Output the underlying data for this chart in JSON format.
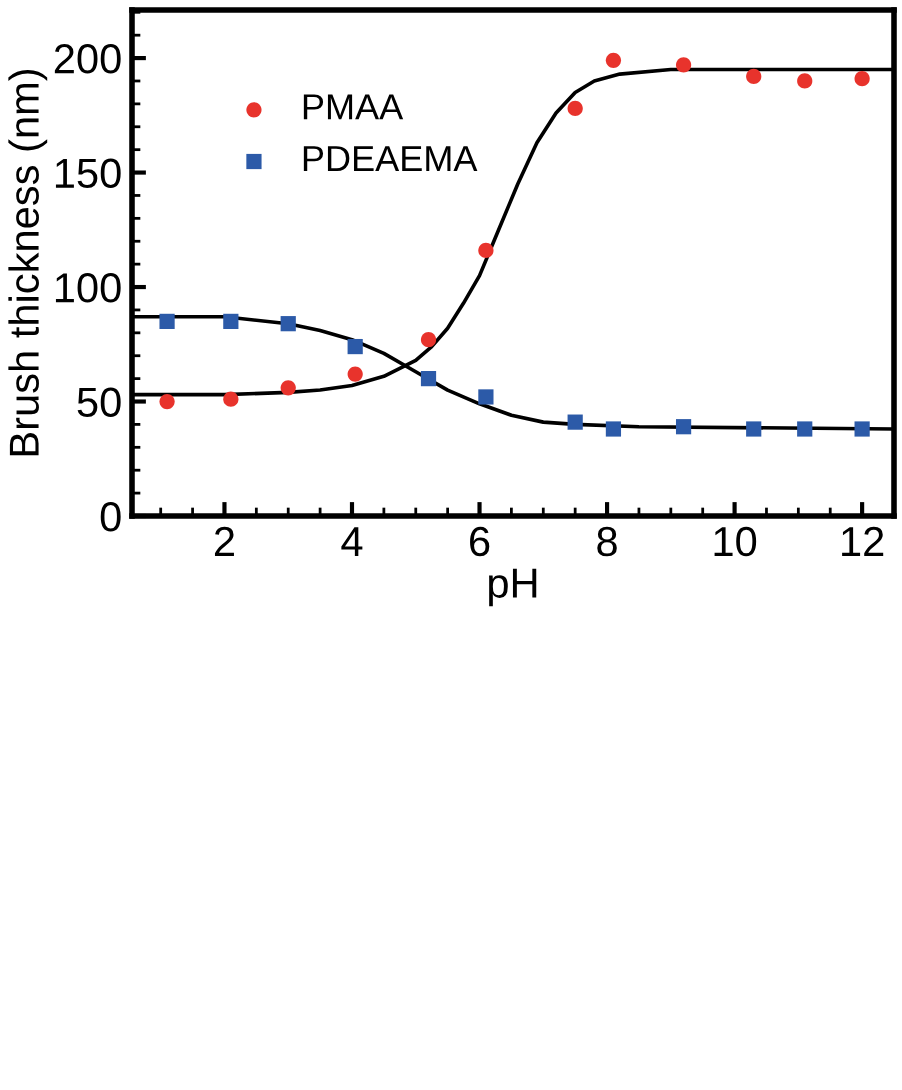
{
  "chart_data": {
    "type": "scatter",
    "xlabel": "pH",
    "ylabel": "Brush thickness (nm)",
    "xlim": [
      0.55,
      12.5
    ],
    "ylim": [
      0,
      221
    ],
    "xticks": [
      2,
      4,
      6,
      8,
      10,
      12
    ],
    "yticks": [
      0,
      50,
      100,
      150,
      200
    ],
    "grid": false,
    "legend": "top left",
    "series": [
      {
        "name": "PMAA",
        "color": "#e8332c",
        "marker": "circle",
        "x": [
          1.1,
          2.1,
          3.0,
          4.05,
          5.2,
          6.1,
          7.5,
          8.1,
          9.2,
          10.3,
          11.1,
          12.0
        ],
        "values": [
          50,
          51,
          56,
          62,
          77,
          116,
          178,
          199,
          197,
          192,
          190,
          191
        ]
      },
      {
        "name": "PDEAEMA",
        "color": "#2c5aa8",
        "marker": "square",
        "x": [
          1.1,
          2.1,
          3.0,
          4.05,
          5.2,
          6.1,
          7.5,
          8.1,
          9.2,
          10.3,
          11.1,
          12.0
        ],
        "values": [
          85,
          85,
          84,
          74,
          60,
          52,
          41,
          38,
          39,
          38,
          38,
          38
        ]
      },
      {
        "type": "line",
        "color": "#000000",
        "marker": "none",
        "x": [
          0.55,
          2,
          3,
          3.5,
          4,
          4.5,
          5,
          5.25,
          5.5,
          5.75,
          6,
          6.3,
          6.6,
          6.9,
          7.2,
          7.5,
          7.8,
          8.2,
          9,
          12.5
        ],
        "values": [
          53,
          53,
          54,
          55,
          57,
          61,
          68,
          74,
          82,
          93,
          105,
          125,
          145,
          163,
          176,
          185,
          190,
          193,
          195,
          195
        ]
      },
      {
        "type": "line",
        "color": "#000000",
        "marker": "none",
        "x": [
          0.55,
          2,
          3,
          3.5,
          4,
          4.5,
          5,
          5.5,
          6,
          6.5,
          7,
          7.5,
          8.5,
          12.5
        ],
        "values": [
          87,
          87,
          84,
          81,
          77,
          71,
          63,
          55,
          49,
          44,
          41,
          40,
          39,
          38
        ]
      }
    ]
  }
}
